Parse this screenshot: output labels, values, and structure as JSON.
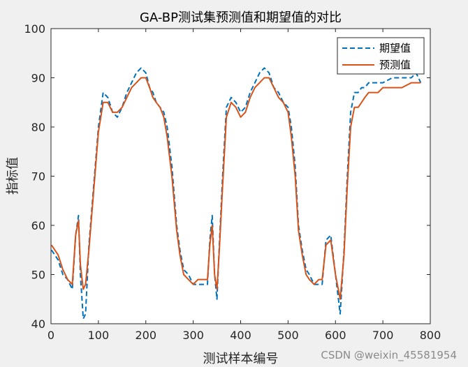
{
  "chart_data": {
    "type": "line",
    "title": "GA-BP测试集预测值和期望值的对比",
    "xlabel": "测试样本编号",
    "ylabel": "指标值",
    "xlim": [
      0,
      800
    ],
    "ylim": [
      40,
      100
    ],
    "xticks": [
      0,
      100,
      200,
      300,
      400,
      500,
      600,
      700,
      800
    ],
    "yticks": [
      40,
      50,
      60,
      70,
      80,
      90,
      100
    ],
    "grid": false,
    "legend_position": "top-right",
    "series": [
      {
        "name": "期望值",
        "style": "dashed",
        "color": "#0072BD",
        "x": [
          1,
          15,
          25,
          35,
          45,
          52,
          58,
          62,
          68,
          73,
          80,
          90,
          100,
          110,
          120,
          130,
          140,
          150,
          160,
          170,
          180,
          190,
          200,
          208,
          215,
          222,
          230,
          238,
          245,
          255,
          265,
          272,
          280,
          290,
          300,
          310,
          320,
          330,
          335,
          340,
          345,
          350,
          355,
          362,
          370,
          380,
          390,
          400,
          410,
          420,
          430,
          440,
          450,
          460,
          470,
          480,
          490,
          500,
          507,
          515,
          522,
          530,
          538,
          545,
          555,
          565,
          572,
          580,
          590,
          600,
          610,
          618,
          625,
          632,
          640,
          648,
          655,
          662,
          670,
          680,
          690,
          700,
          720,
          740,
          760,
          770,
          780
        ],
        "y": [
          55,
          53,
          50,
          49,
          47,
          58,
          62,
          50,
          41,
          42,
          56,
          68,
          80,
          87,
          86,
          83,
          82,
          84,
          87,
          89,
          91,
          92,
          91,
          88,
          87,
          85,
          84,
          83,
          80,
          72,
          60,
          55,
          51,
          50,
          48,
          48,
          48,
          48,
          57,
          62,
          50,
          45,
          56,
          70,
          84,
          86,
          85,
          83,
          84,
          87,
          89,
          91,
          92,
          91,
          88,
          87,
          85,
          84,
          80,
          72,
          60,
          55,
          51,
          50,
          48,
          48,
          48,
          57,
          58,
          50,
          42,
          55,
          70,
          83,
          87,
          87,
          88,
          88,
          89,
          89,
          89,
          89,
          90,
          90,
          90,
          91,
          89
        ]
      },
      {
        "name": "预测值",
        "style": "solid",
        "color": "#D95319",
        "x": [
          1,
          15,
          25,
          35,
          45,
          52,
          58,
          62,
          68,
          73,
          80,
          90,
          100,
          110,
          120,
          130,
          140,
          150,
          160,
          170,
          180,
          190,
          200,
          208,
          215,
          222,
          230,
          238,
          245,
          255,
          265,
          272,
          280,
          290,
          300,
          310,
          320,
          330,
          335,
          340,
          345,
          350,
          355,
          362,
          370,
          380,
          390,
          400,
          410,
          420,
          430,
          440,
          450,
          460,
          470,
          480,
          490,
          500,
          507,
          515,
          522,
          530,
          538,
          545,
          555,
          565,
          572,
          580,
          590,
          600,
          610,
          618,
          625,
          632,
          640,
          648,
          655,
          662,
          670,
          680,
          690,
          700,
          720,
          740,
          760,
          770,
          780
        ],
        "y": [
          56,
          54,
          51,
          49,
          48,
          58,
          61,
          52,
          47,
          48,
          55,
          67,
          79,
          85,
          85,
          83,
          83,
          84,
          86,
          88,
          89,
          90,
          90,
          88,
          86,
          85,
          84,
          82,
          78,
          70,
          59,
          54,
          50,
          49,
          48,
          49,
          49,
          49,
          56,
          60,
          50,
          47,
          55,
          68,
          82,
          85,
          84,
          82,
          83,
          86,
          88,
          89,
          90,
          90,
          88,
          86,
          85,
          83,
          78,
          70,
          59,
          54,
          50,
          49,
          48,
          49,
          49,
          56,
          57,
          50,
          45,
          54,
          68,
          80,
          84,
          84,
          85,
          86,
          87,
          87,
          87,
          88,
          88,
          88,
          89,
          89,
          89
        ]
      }
    ]
  },
  "watermark": "CSDN @weixin_45581954"
}
